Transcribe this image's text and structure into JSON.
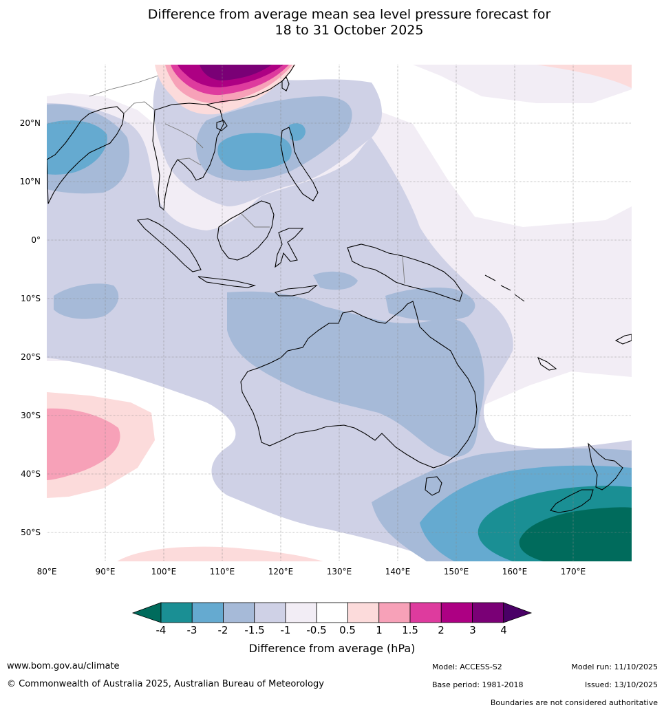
{
  "title": {
    "line1": "Difference from average mean sea level pressure forecast for",
    "line2": "18 to 31 October 2025"
  },
  "axes": {
    "lon_labels": [
      "80°E",
      "90°E",
      "100°E",
      "110°E",
      "120°E",
      "130°E",
      "140°E",
      "150°E",
      "160°E",
      "170°E"
    ],
    "lat_labels": [
      "20°N",
      "10°N",
      "0°",
      "10°S",
      "20°S",
      "30°S",
      "40°S",
      "50°S"
    ]
  },
  "colorbar": {
    "tick_labels": [
      "-4",
      "-3",
      "-2",
      "-1.5",
      "-1",
      "-0.5",
      "0.5",
      "1",
      "1.5",
      "2",
      "3",
      "4"
    ],
    "title": "Difference from average (hPa)",
    "colors": {
      "lt_-4": "#006b5c",
      "-4_-3": "#1a8f94",
      "-3_-2": "#65aad0",
      "-2_-1.5": "#a6bad8",
      "-1.5_-1": "#cfd1e6",
      "-1_-0.5": "#f2edf5",
      "-0.5_0.5": "#ffffff",
      "0.5_1": "#fcdbdb",
      "1_1.5": "#f7a1b8",
      "1.5_2": "#de3b9e",
      "2_3": "#ad0083",
      "3_4": "#7a0076",
      "gt_4": "#4a0066"
    }
  },
  "footer": {
    "website": "www.bom.gov.au/climate",
    "copyright": "© Commonwealth of Australia 2025, Australian Bureau of Meteorology",
    "model": "Model: ACCESS-S2",
    "base_period": "Base period: 1981-2018",
    "model_run": "Model run: 11/10/2025",
    "issued": "Issued: 13/10/2025",
    "disclaimer": "Boundaries are not considered authoritative"
  }
}
